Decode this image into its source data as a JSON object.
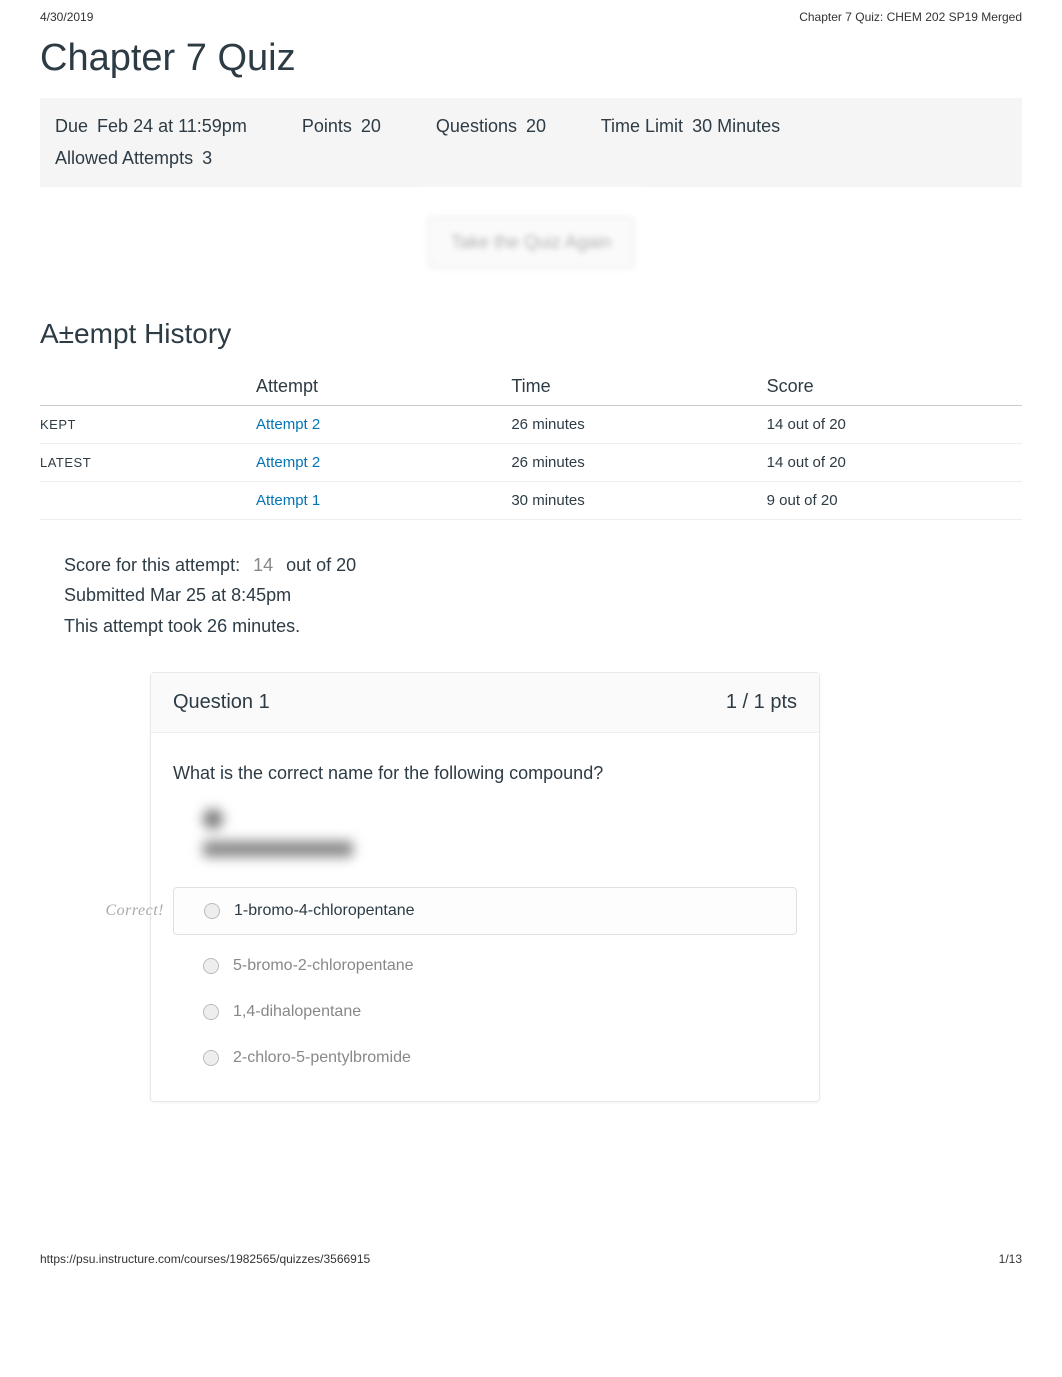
{
  "header": {
    "date": "4/30/2019",
    "doc_title": "Chapter 7 Quiz: CHEM 202 SP19 Merged"
  },
  "title": "Chapter 7 Quiz",
  "info": {
    "due_label": "Due",
    "due_value": "Feb 24 at 11:59pm",
    "points_label": "Points",
    "points_value": "20",
    "questions_label": "Questions",
    "questions_value": "20",
    "timelimit_label": "Time Limit",
    "timelimit_value": "30 Minutes",
    "attempts_label": "Allowed Attempts",
    "attempts_value": "3"
  },
  "take_again": "Take the Quiz Again",
  "history_title": "A±empt History",
  "history": {
    "columns": [
      "",
      "Attempt",
      "Time",
      "Score"
    ],
    "rows": [
      {
        "status": "KEPT",
        "attempt": "Attempt 2",
        "time": "26 minutes",
        "score": "14 out of 20"
      },
      {
        "status": "LATEST",
        "attempt": "Attempt 2",
        "time": "26 minutes",
        "score": "14 out of 20"
      },
      {
        "status": "",
        "attempt": "Attempt 1",
        "time": "30 minutes",
        "score": "9 out of 20"
      }
    ]
  },
  "summary": {
    "score_label": "Score for this attempt:",
    "score_value": "14",
    "score_suffix": " out of 20",
    "submitted": "Submitted Mar 25 at 8:45pm",
    "duration": "This attempt took 26 minutes."
  },
  "question": {
    "title": "Question 1",
    "points": "1 / 1 pts",
    "prompt": "What is the correct name for the following compound?",
    "correct_label": "Correct!",
    "answers": [
      {
        "text": "1-bromo-4-chloropentane",
        "correct": true
      },
      {
        "text": "5-bromo-2-chloropentane",
        "correct": false
      },
      {
        "text": "1,4-dihalopentane",
        "correct": false
      },
      {
        "text": "2-chloro-5-pentylbromide",
        "correct": false
      }
    ]
  },
  "footer": {
    "url": "https://psu.instructure.com/courses/1982565/quizzes/3566915",
    "page": "1/13"
  }
}
